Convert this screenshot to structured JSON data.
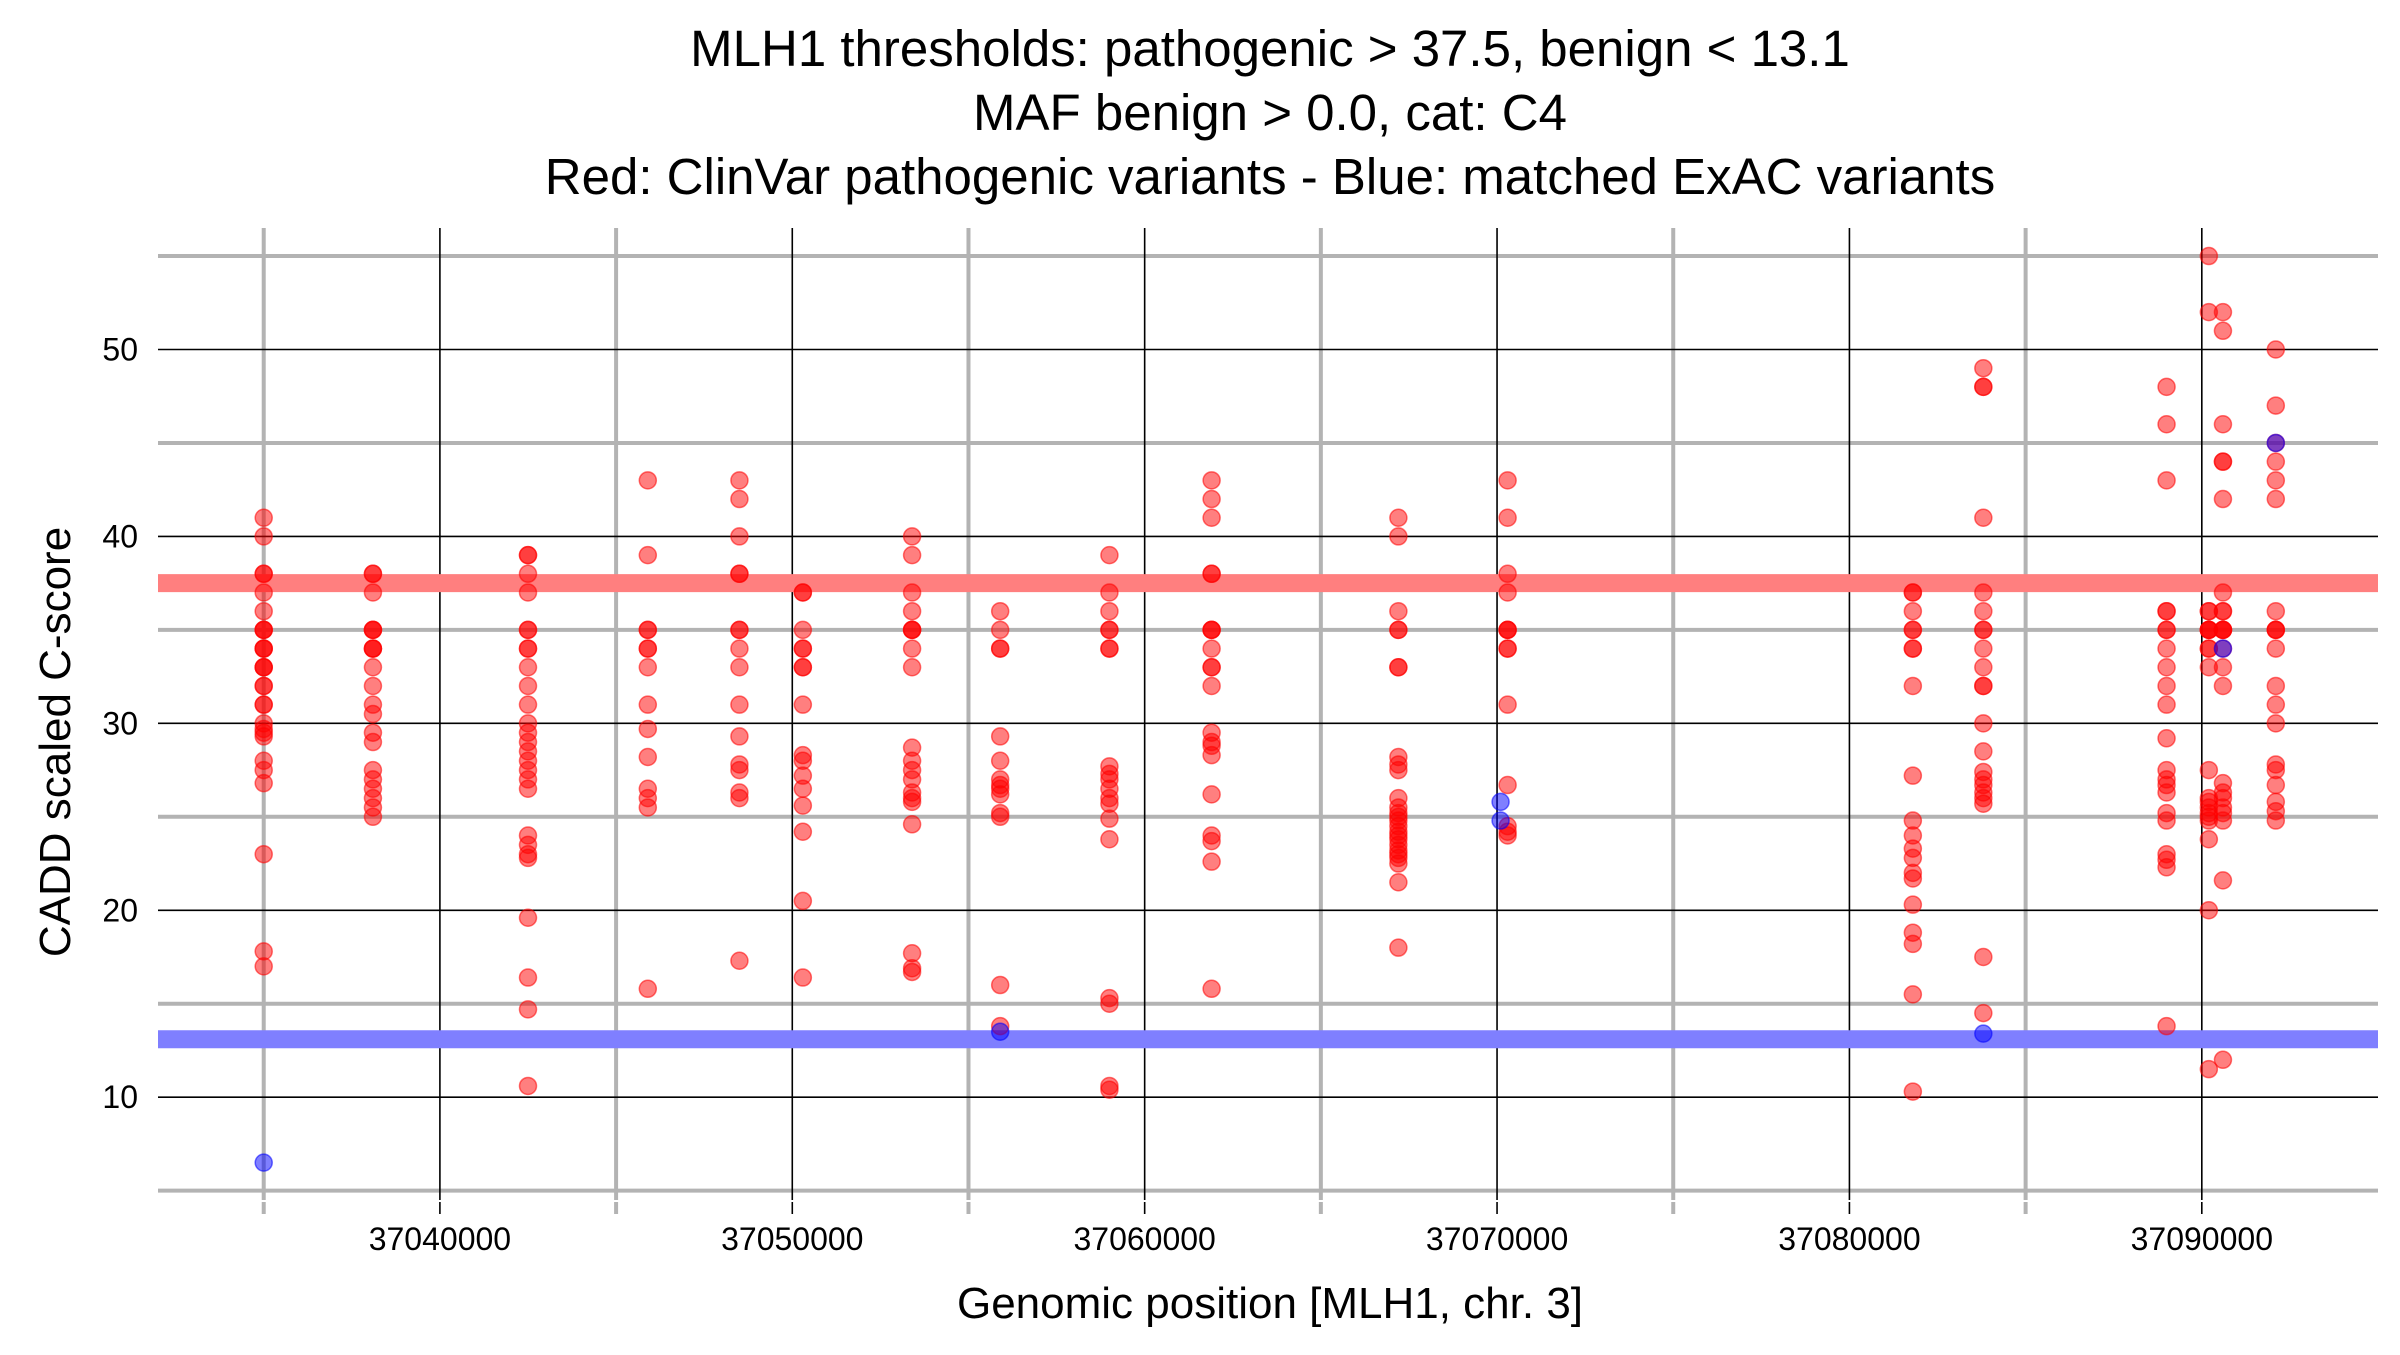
{
  "chart_data": {
    "type": "scatter",
    "title_lines": [
      "MLH1 thresholds: pathogenic > 37.5, benign < 13.1",
      "MAF benign > 0.0, cat: C4",
      "Red: ClinVar pathogenic variants - Blue: matched ExAC variants"
    ],
    "xlabel": "Genomic position [MLH1, chr. 3]",
    "ylabel": "CADD scaled C-score",
    "xlim": [
      37032000,
      37095000
    ],
    "ylim": [
      4.5,
      56.5
    ],
    "x_ticks": [
      37040000,
      37050000,
      37060000,
      37070000,
      37080000,
      37090000
    ],
    "x_tick_labels": [
      "37040000",
      "37050000",
      "37060000",
      "37070000",
      "37080000",
      "37090000"
    ],
    "x_minor_ticks": [
      37035000,
      37045000,
      37055000,
      37065000,
      37075000,
      37085000
    ],
    "y_ticks": [
      10,
      20,
      30,
      40,
      50
    ],
    "y_tick_labels": [
      "10",
      "20",
      "30",
      "40",
      "50"
    ],
    "y_minor_ticks": [
      5,
      15,
      25,
      35,
      45,
      55
    ],
    "grid": true,
    "colors": {
      "pathogenic_line": "#ff7f7f",
      "benign_line": "#7f7fff",
      "pathogenic_point": "#ff0000",
      "benign_point": "#0000ff"
    },
    "thresholds": [
      {
        "label": "pathogenic",
        "y": 37.5
      },
      {
        "label": "benign",
        "y": 13.1
      }
    ],
    "series": [
      {
        "name": "ClinVar pathogenic variants",
        "clusters": [
          {
            "x": 37035000,
            "y": [
              41,
              40,
              38,
              38,
              37,
              36,
              35,
              35,
              35,
              34,
              34,
              34,
              33,
              33,
              33,
              32,
              32,
              31,
              31,
              30,
              29.7,
              29.5,
              29.3,
              28,
              27.5,
              26.8,
              23,
              17.8,
              17
            ]
          },
          {
            "x": 37038100,
            "y": [
              38,
              38,
              37,
              35,
              35,
              35,
              34,
              34,
              34,
              33,
              32,
              31,
              30.5,
              29.5,
              29,
              27.5,
              27,
              26.5,
              26,
              25.5,
              25
            ]
          },
          {
            "x": 37042500,
            "y": [
              39,
              39,
              38,
              37,
              35,
              35,
              34,
              34,
              33,
              32,
              31,
              30,
              29.5,
              29,
              28.5,
              28,
              27.5,
              27,
              26.5,
              24,
              23.5,
              23,
              22.8,
              19.6,
              16.4,
              14.7,
              10.6
            ]
          },
          {
            "x": 37045900,
            "y": [
              43,
              39,
              35,
              35,
              34,
              34,
              33,
              31,
              29.7,
              28.2,
              26.5,
              26,
              25.5,
              15.8
            ]
          },
          {
            "x": 37048500,
            "y": [
              43,
              42,
              40,
              38,
              38,
              35,
              35,
              34,
              33,
              31,
              29.3,
              27.8,
              27.5,
              26.3,
              26,
              17.3
            ]
          },
          {
            "x": 37050300,
            "y": [
              37,
              37,
              35,
              34,
              34,
              33,
              33,
              31,
              28.3,
              28,
              27.2,
              26.5,
              25.6,
              24.2,
              20.5,
              16.4
            ]
          },
          {
            "x": 37053400,
            "y": [
              40,
              39,
              37,
              36,
              35,
              35,
              35,
              34,
              33,
              28.7,
              28,
              27.5,
              27,
              26.3,
              26,
              25.8,
              24.6,
              17.7,
              16.9,
              16.7
            ]
          },
          {
            "x": 37055900,
            "y": [
              36,
              35,
              34,
              34,
              29.3,
              28,
              27,
              26.7,
              26.5,
              26.2,
              25.2,
              25,
              16,
              13.8
            ]
          },
          {
            "x": 37059000,
            "y": [
              39,
              37,
              36,
              35,
              35,
              34,
              34,
              27.7,
              27.3,
              27,
              26.5,
              26,
              25.7,
              24.9,
              23.8,
              15.3,
              15,
              10.6,
              10.4
            ]
          },
          {
            "x": 37061900,
            "y": [
              43,
              42,
              41,
              38,
              38,
              35,
              35,
              35,
              34,
              33,
              33,
              32,
              29.5,
              29,
              28.8,
              28.3,
              26.2,
              24,
              23.7,
              22.6,
              15.8
            ]
          },
          {
            "x": 37067200,
            "y": [
              41,
              40,
              36,
              35,
              35,
              33,
              33,
              28.2,
              27.8,
              27.5,
              26,
              25.5,
              25.2,
              25,
              24.8,
              24.5,
              24.2,
              24,
              23.8,
              23.5,
              23.2,
              23,
              22.8,
              22.5,
              21.5,
              18
            ]
          },
          {
            "x": 37070300,
            "y": [
              43,
              41,
              38,
              37,
              35,
              35,
              35,
              34,
              34,
              31,
              26.7,
              24.5,
              24.2,
              24
            ]
          },
          {
            "x": 37081800,
            "y": [
              37,
              37,
              36,
              35,
              35,
              34,
              34,
              32,
              27.2,
              24.8,
              24,
              23.3,
              22.8,
              22,
              21.7,
              20.3,
              18.8,
              18.2,
              15.5,
              10.3
            ]
          },
          {
            "x": 37083800,
            "y": [
              49,
              48,
              48,
              41,
              37,
              36,
              35,
              35,
              34,
              33,
              32,
              32,
              30,
              28.5,
              27.4,
              27,
              26.7,
              26.3,
              26,
              25.7,
              17.5,
              14.5
            ]
          },
          {
            "x": 37089000,
            "y": [
              48,
              46,
              43,
              36,
              36,
              35,
              35,
              34,
              33,
              32,
              31,
              29.2,
              27.5,
              27,
              26.7,
              26.3,
              25.2,
              24.8,
              23,
              22.7,
              22.3,
              13.8
            ]
          },
          {
            "x": 37090200,
            "y": [
              55,
              52,
              36,
              36,
              35,
              35,
              35,
              35,
              34,
              34,
              33,
              27.5,
              26,
              25.8,
              25.5,
              25.2,
              25,
              24.8,
              23.8,
              20,
              11.5
            ]
          },
          {
            "x": 37090600,
            "y": [
              52,
              51,
              46,
              44,
              44,
              42,
              37,
              36,
              36,
              35,
              35,
              35,
              35,
              34,
              33,
              32,
              26.8,
              26.3,
              26,
              25.5,
              25.2,
              24.8,
              21.6,
              12
            ]
          },
          {
            "x": 37092100,
            "y": [
              50,
              47,
              45,
              44,
              43,
              42,
              36,
              35,
              35,
              35,
              34,
              32,
              31,
              30,
              27.8,
              27.5,
              26.7,
              25.8,
              25.3,
              24.8
            ]
          }
        ]
      },
      {
        "name": "matched ExAC variants",
        "points": [
          {
            "x": 37035000,
            "y": 6.5
          },
          {
            "x": 37055900,
            "y": 13.5
          },
          {
            "x": 37070100,
            "y": 25.8
          },
          {
            "x": 37070100,
            "y": 24.8
          },
          {
            "x": 37083800,
            "y": 13.4
          },
          {
            "x": 37090600,
            "y": 34
          },
          {
            "x": 37092100,
            "y": 45
          }
        ]
      }
    ]
  }
}
